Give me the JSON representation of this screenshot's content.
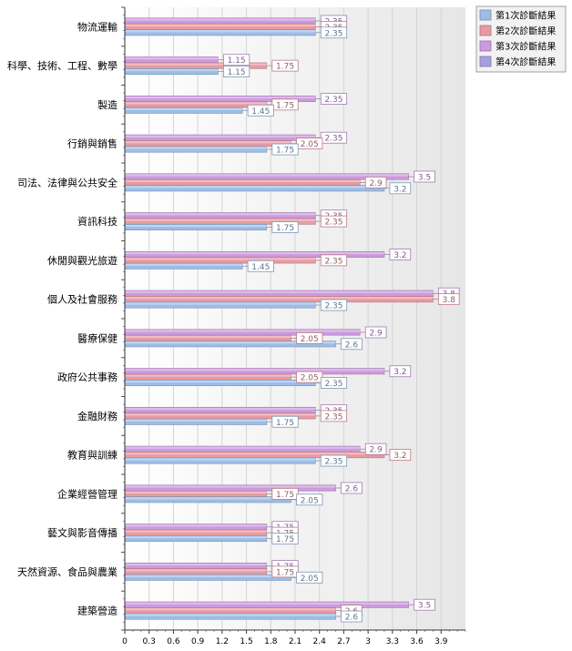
{
  "chart_data": {
    "type": "bar",
    "orientation": "horizontal",
    "categories": [
      "物流運輸",
      "科學、技術、工程、數學",
      "製造",
      "行銷與銷售",
      "司法、法律與公共安全",
      "資訊科技",
      "休閒與觀光旅遊",
      "個人及社會服務",
      "醫療保健",
      "政府公共事務",
      "金融財務",
      "教育與訓練",
      "企業經營管理",
      "藝文與影音傳播",
      "天然資源、食品與農業",
      "建築營造"
    ],
    "series": [
      {
        "name": "第1次診斷結果",
        "color": "#9dbde6",
        "values": [
          2.35,
          1.15,
          1.45,
          1.75,
          3.2,
          1.75,
          1.45,
          2.35,
          2.6,
          2.35,
          1.75,
          2.35,
          2.05,
          1.75,
          2.05,
          2.6
        ]
      },
      {
        "name": "第2次診斷結果",
        "color": "#e89aa2",
        "values": [
          2.35,
          1.75,
          1.75,
          2.05,
          2.9,
          2.35,
          2.35,
          3.8,
          2.05,
          2.05,
          2.35,
          3.2,
          1.75,
          1.75,
          1.75,
          2.6
        ]
      },
      {
        "name": "第3次診斷結果",
        "color": "#cc9ade",
        "values": [
          2.35,
          1.15,
          2.35,
          2.35,
          3.5,
          2.35,
          3.2,
          3.8,
          2.9,
          3.2,
          2.35,
          2.9,
          2.6,
          1.75,
          1.75,
          3.5
        ]
      },
      {
        "name": "第4次診斷結果",
        "color": "#a59fe0",
        "values": [
          null,
          null,
          null,
          null,
          null,
          null,
          null,
          null,
          null,
          null,
          null,
          null,
          null,
          null,
          null,
          null
        ]
      }
    ],
    "xticks": [
      "0",
      "0.3",
      "0.6",
      "0.9",
      "1.2",
      "1.5",
      "1.8",
      "2.1",
      "2.4",
      "2.7",
      "3",
      "3.3",
      "3.6",
      "3.9"
    ],
    "xlim": [
      0,
      4.2
    ],
    "grid": "vertical",
    "legend": "top-right"
  }
}
